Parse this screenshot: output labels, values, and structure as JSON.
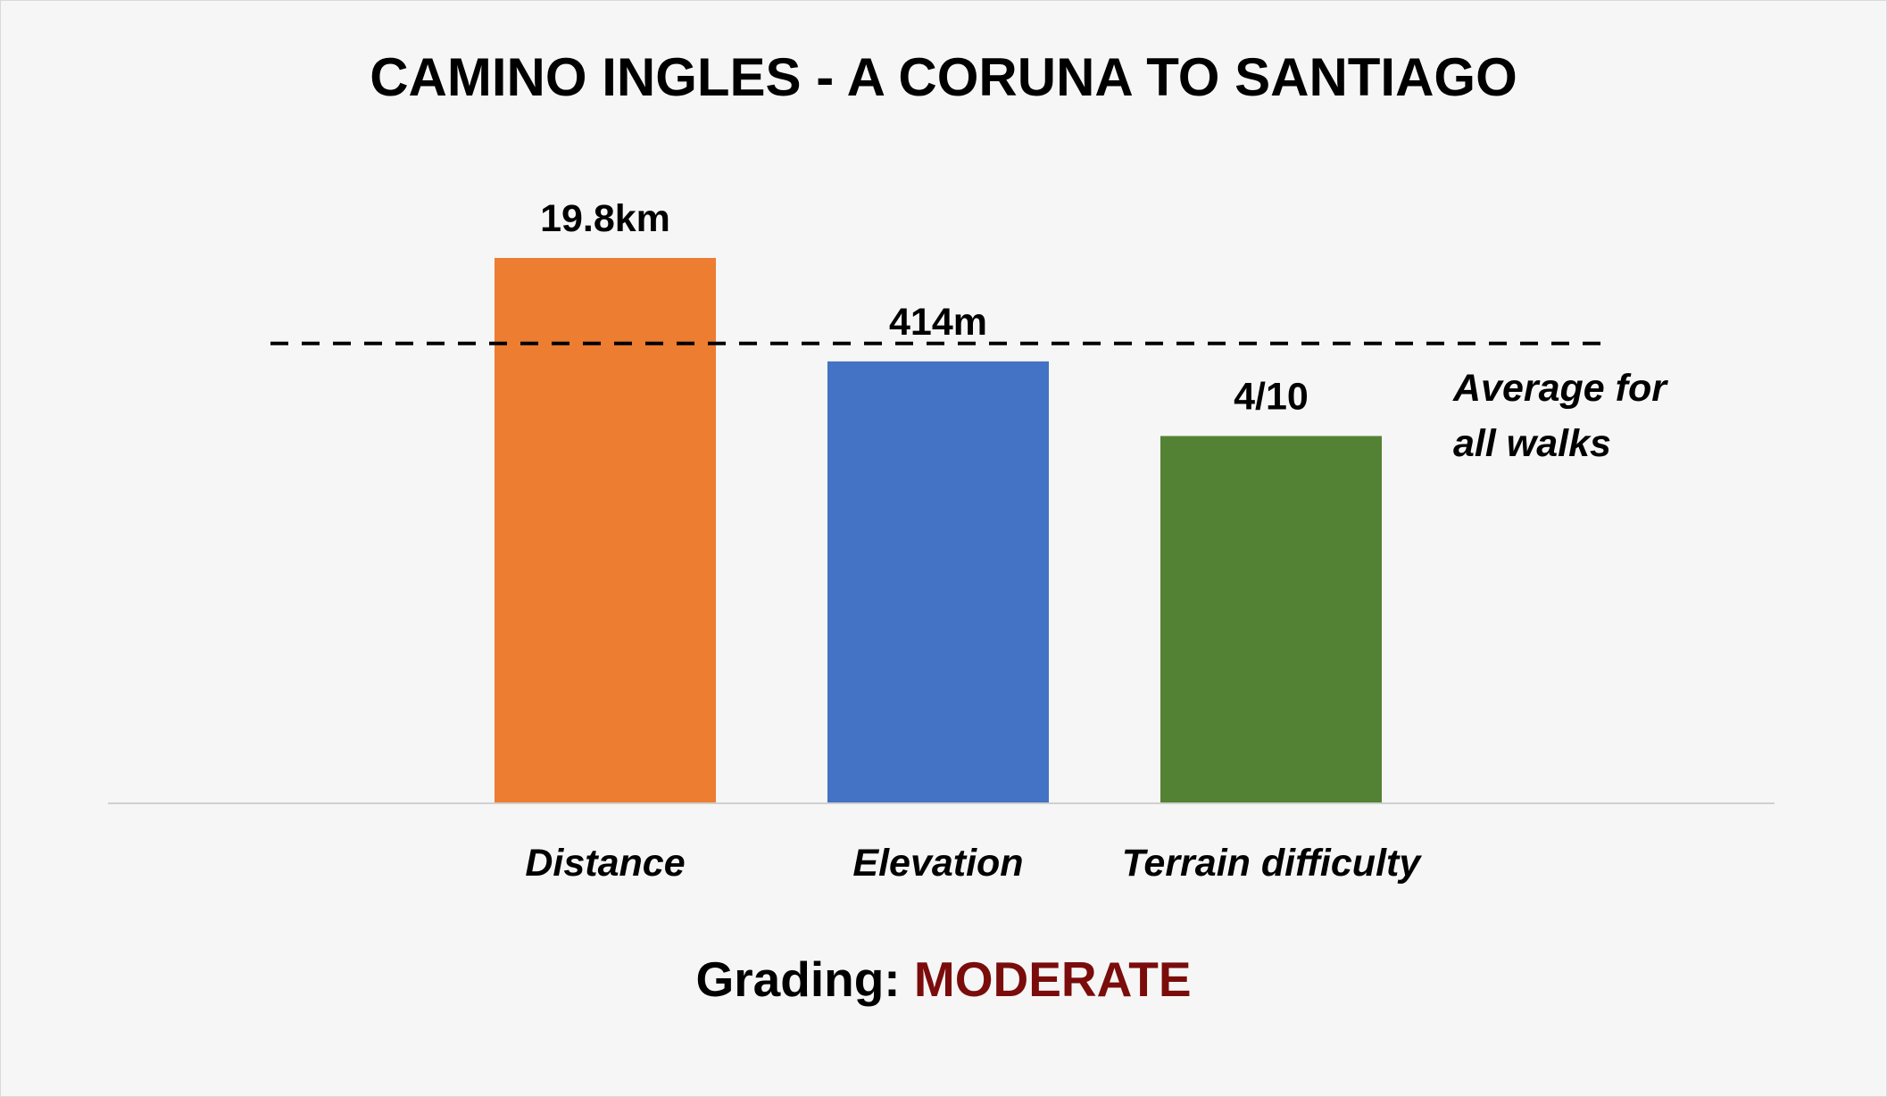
{
  "chart_data": {
    "type": "bar",
    "title": "CAMINO INGLES - A CORUNA TO SANTIAGO",
    "categories": [
      "Distance",
      "Elevation",
      "Terrain difficulty"
    ],
    "data_labels": [
      "19.8km",
      "414m",
      "4/10"
    ],
    "values_relative": [
      1.0,
      0.81,
      0.673
    ],
    "reference_line": {
      "label_line1": "Average for",
      "label_line2": "all walks",
      "value_relative": 0.843,
      "style": "dashed"
    },
    "xlabel": "",
    "ylabel": "",
    "grid": false,
    "legend": "none",
    "colors": [
      "#ed7d31",
      "#4472c4",
      "#548235"
    ]
  },
  "grading": {
    "label": "Grading:",
    "value": "MODERATE",
    "label_color": "#000000",
    "value_color": "#7b0c0c"
  },
  "colors": {
    "background": "#f6f6f6",
    "frame_border": "#d9d9d9",
    "axis": "#d0d0d0",
    "reference_line": "#000000"
  }
}
